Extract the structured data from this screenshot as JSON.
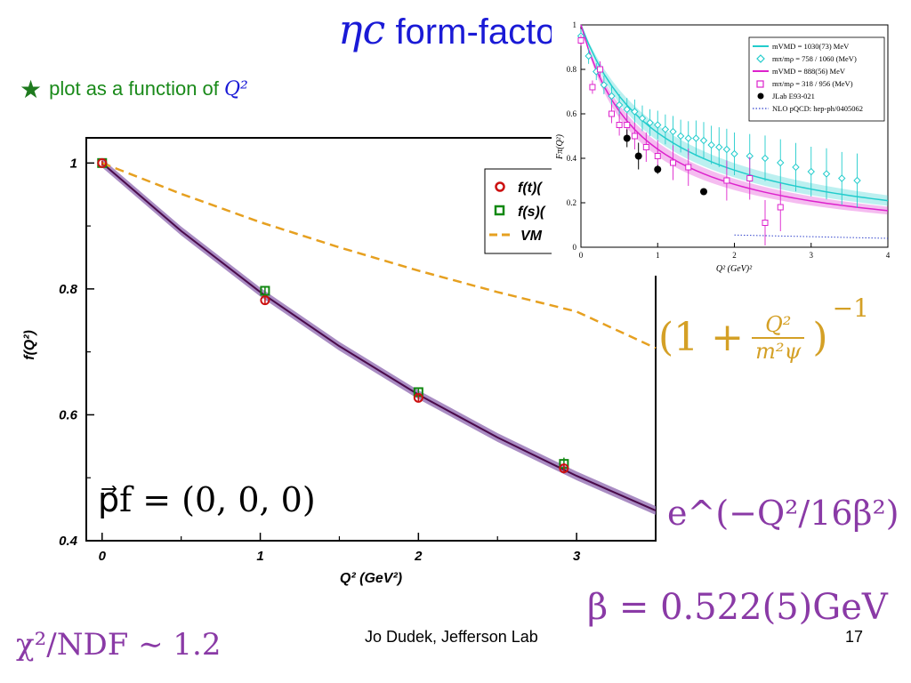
{
  "slide": {
    "title_symbol": "ηc",
    "title_text": " form-facto",
    "bullet_text": "plot as a function of ",
    "bullet_var": "Q²",
    "footer": "Jo Dudek, Jefferson Lab",
    "page_number": "17"
  },
  "formulas": {
    "momentum": "p⃗f = (0, 0, 0)",
    "vmd_lhs": "(1 +",
    "vmd_num": "Q²",
    "vmd_den": "m²ψ",
    "vmd_rhs": ")",
    "vmd_exp": "−1",
    "exponential": "e^(−Q²/16β²)",
    "beta": "β = 0.522(5)GeV",
    "chi2": "χ²/NDF ∼ 1.2"
  },
  "colors": {
    "title": "#1a1ad6",
    "fit_band": "#9a78b8",
    "fit_line": "#4a0a4a",
    "vmd_line": "#e6a020",
    "temporal_points": "#cc1111",
    "spatial_points": "#118811",
    "inset_cyan": "#22cccc",
    "inset_magenta": "#dd22cc"
  },
  "chart_data": [
    {
      "type": "scatter",
      "xlabel": "Q² (GeV²)",
      "ylabel": "f(Q²)",
      "xlim": [
        -0.1,
        3.5
      ],
      "ylim": [
        0.4,
        1.04
      ],
      "x_ticks": [
        0,
        1,
        2,
        3
      ],
      "y_ticks": [
        0.4,
        0.6,
        0.8,
        1
      ],
      "y_tick_labels": [
        "0.4",
        "0.6",
        "0.8",
        "1"
      ],
      "legend_position": "top-right",
      "series": [
        {
          "name": "f(t)(",
          "kind": "points",
          "marker": "circle",
          "x": [
            0,
            1.03,
            2.0,
            2.92
          ],
          "y": [
            1.0,
            0.782,
            0.627,
            0.515
          ],
          "err": [
            0.004,
            0.006,
            0.006,
            0.008
          ]
        },
        {
          "name": "f(s)(",
          "kind": "points",
          "marker": "square",
          "x": [
            0,
            1.03,
            2.0,
            2.92
          ],
          "y": [
            1.0,
            0.797,
            0.636,
            0.522
          ],
          "err": [
            0.004,
            0.006,
            0.006,
            0.01
          ]
        },
        {
          "name": "VM",
          "kind": "dashed-line",
          "x": [
            0,
            0.5,
            1,
            1.5,
            2,
            2.5,
            3,
            3.5
          ],
          "y": [
            1.0,
            0.951,
            0.906,
            0.866,
            0.829,
            0.795,
            0.764,
            0.706
          ]
        },
        {
          "name": "",
          "kind": "fit-band",
          "x": [
            0,
            0.5,
            1,
            1.5,
            2,
            2.5,
            3,
            3.5
          ],
          "y": [
            1.0,
            0.892,
            0.795,
            0.709,
            0.632,
            0.564,
            0.503,
            0.448
          ],
          "band_width": 0.007
        }
      ]
    },
    {
      "type": "scatter",
      "xlabel": "Q² (GeV)²",
      "ylabel": "Fπ(Q²)",
      "xlim": [
        0,
        4
      ],
      "ylim": [
        0,
        1
      ],
      "x_ticks": [
        0,
        1,
        2,
        3,
        4
      ],
      "y_ticks": [
        0,
        0.2,
        0.4,
        0.6,
        0.8,
        1
      ],
      "y_tick_labels": [
        "0",
        "0.2",
        "0.4",
        "0.6",
        "0.8",
        "1"
      ],
      "legend_position": "top-right",
      "legend": [
        "mVMD = 1030(73) MeV",
        "mπ/mρ = 758 / 1060 (MeV)",
        "mVMD = 888(56) MeV",
        "mπ/mρ = 318 / 956 (MeV)",
        "JLab E93-021",
        "NLO pQCD: hep-ph/0405062"
      ],
      "series": [
        {
          "name": "mVMD = 1030(73) MeV",
          "kind": "band",
          "mass": 1.03
        },
        {
          "name": "mVMD = 888(56) MeV",
          "kind": "band",
          "mass": 0.888
        },
        {
          "name": "mπ/mρ = 758 / 1060 (MeV)",
          "kind": "diamonds",
          "x": [
            0.0,
            0.1,
            0.2,
            0.3,
            0.4,
            0.5,
            0.6,
            0.7,
            0.8,
            0.9,
            1.0,
            1.1,
            1.2,
            1.3,
            1.4,
            1.5,
            1.6,
            1.7,
            1.8,
            1.9,
            2.0,
            2.2,
            2.4,
            2.6,
            2.8,
            3.0,
            3.2,
            3.4,
            3.6
          ],
          "y": [
            0.95,
            0.86,
            0.79,
            0.73,
            0.68,
            0.64,
            0.62,
            0.61,
            0.58,
            0.56,
            0.55,
            0.53,
            0.52,
            0.5,
            0.49,
            0.49,
            0.48,
            0.46,
            0.45,
            0.44,
            0.42,
            0.41,
            0.4,
            0.38,
            0.36,
            0.34,
            0.33,
            0.31,
            0.3
          ]
        },
        {
          "name": "mπ/mρ = 318 / 956 (MeV)",
          "kind": "squares",
          "x": [
            0.0,
            0.15,
            0.25,
            0.4,
            0.5,
            0.6,
            0.7,
            0.85,
            1.0,
            1.2,
            1.4,
            1.9,
            2.2,
            2.4,
            2.6
          ],
          "y": [
            0.93,
            0.72,
            0.8,
            0.6,
            0.55,
            0.55,
            0.5,
            0.45,
            0.41,
            0.38,
            0.36,
            0.3,
            0.31,
            0.11,
            0.18
          ]
        },
        {
          "name": "JLab E93-021",
          "kind": "filled-circles",
          "x": [
            0.6,
            0.75,
            1.0,
            1.6
          ],
          "y": [
            0.49,
            0.41,
            0.35,
            0.25
          ],
          "err": [
            0.04,
            0.06,
            0.02,
            0.015
          ]
        },
        {
          "name": "NLO pQCD: hep-ph/0405062",
          "kind": "dotted-line",
          "x": [
            2.0,
            4.0
          ],
          "y": [
            0.055,
            0.04
          ]
        }
      ]
    }
  ]
}
